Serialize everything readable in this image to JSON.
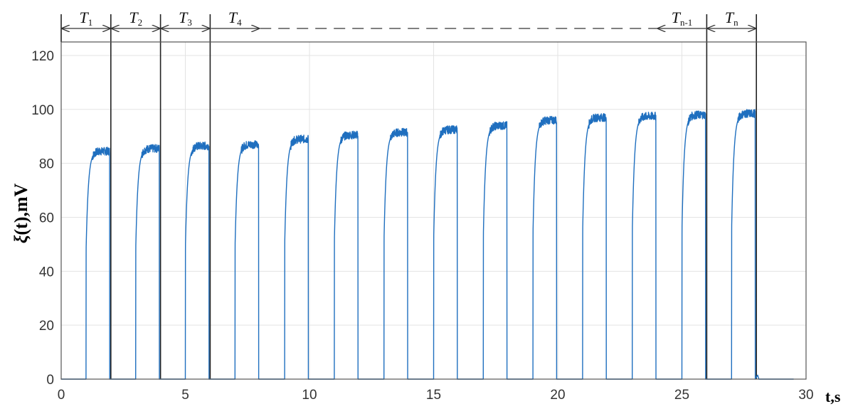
{
  "chart_data": {
    "type": "line",
    "title": "",
    "xlabel": "t,s",
    "ylabel_symbol": "ξ",
    "ylabel": "(t),mV",
    "xlim": [
      0,
      30
    ],
    "ylim": [
      0,
      125
    ],
    "x_ticks": [
      0,
      5,
      10,
      15,
      20,
      25,
      30
    ],
    "y_ticks": [
      0,
      20,
      40,
      60,
      80,
      100,
      120
    ],
    "grid": true,
    "line_color": "#1f6fbf",
    "period_boundaries": [
      0,
      2,
      4,
      6,
      26,
      28
    ],
    "period_labels": [
      {
        "main": "T",
        "sub": "1"
      },
      {
        "main": "T",
        "sub": "2"
      },
      {
        "main": "T",
        "sub": "3"
      },
      {
        "main": "T",
        "sub": "4"
      },
      {
        "main": "T",
        "sub": "n-1"
      },
      {
        "main": "T",
        "sub": "n"
      }
    ],
    "series": [
      {
        "pulses": [
          {
            "start": 1.0,
            "end": 1.95,
            "plateau": 84.5
          },
          {
            "start": 3.0,
            "end": 3.95,
            "plateau": 85.5
          },
          {
            "start": 5.0,
            "end": 5.95,
            "plateau": 86.5
          },
          {
            "start": 7.0,
            "end": 7.95,
            "plateau": 87.0
          },
          {
            "start": 9.0,
            "end": 9.95,
            "plateau": 89.0
          },
          {
            "start": 11.0,
            "end": 11.95,
            "plateau": 90.5
          },
          {
            "start": 13.0,
            "end": 13.95,
            "plateau": 91.5
          },
          {
            "start": 15.0,
            "end": 15.95,
            "plateau": 92.5
          },
          {
            "start": 17.0,
            "end": 17.95,
            "plateau": 94.0
          },
          {
            "start": 19.0,
            "end": 19.95,
            "plateau": 96.0
          },
          {
            "start": 21.0,
            "end": 21.95,
            "plateau": 97.0
          },
          {
            "start": 23.0,
            "end": 23.95,
            "plateau": 97.5
          },
          {
            "start": 25.0,
            "end": 25.95,
            "plateau": 98.0
          },
          {
            "start": 27.0,
            "end": 27.95,
            "plateau": 98.5
          }
        ]
      }
    ]
  }
}
